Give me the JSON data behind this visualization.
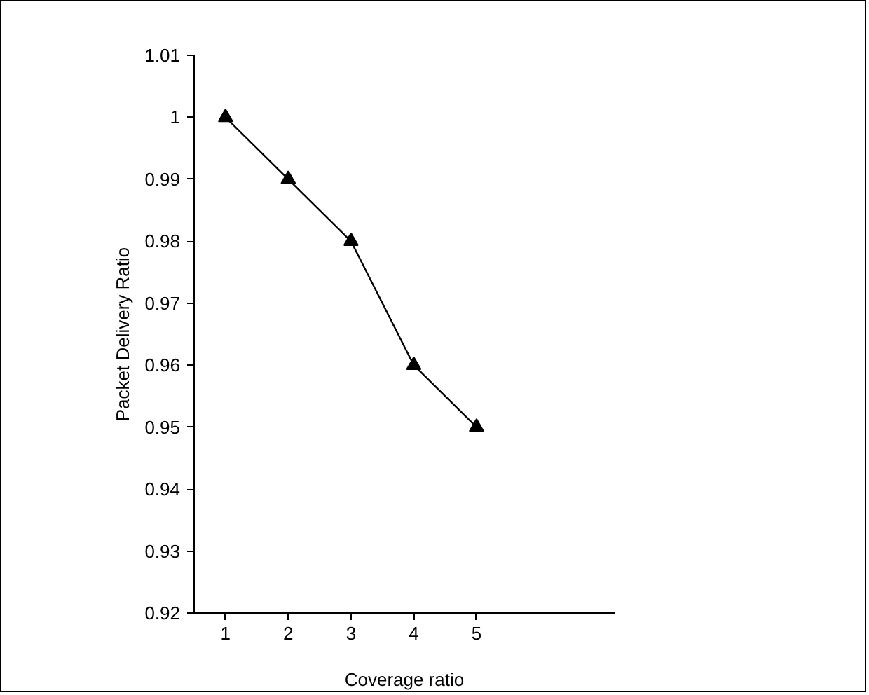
{
  "chart_data": {
    "type": "line",
    "xlabel": "Coverage ratio",
    "ylabel": "Packet Delivery Ratio",
    "x": [
      1,
      2,
      3,
      4,
      5
    ],
    "series": [
      {
        "color": "#000000",
        "values": [
          1,
          0.99,
          0.98,
          0.96,
          0.95
        ]
      }
    ],
    "xlim": [
      0.5,
      7.2
    ],
    "xticks": [
      1,
      2,
      3,
      4,
      5
    ],
    "ylim": [
      0.92,
      1.01
    ],
    "yticks": [
      0.92,
      0.93,
      0.94,
      0.95,
      0.96,
      0.97,
      0.98,
      0.99,
      1,
      1.01
    ],
    "marker": "triangle",
    "line_style": "solid"
  }
}
